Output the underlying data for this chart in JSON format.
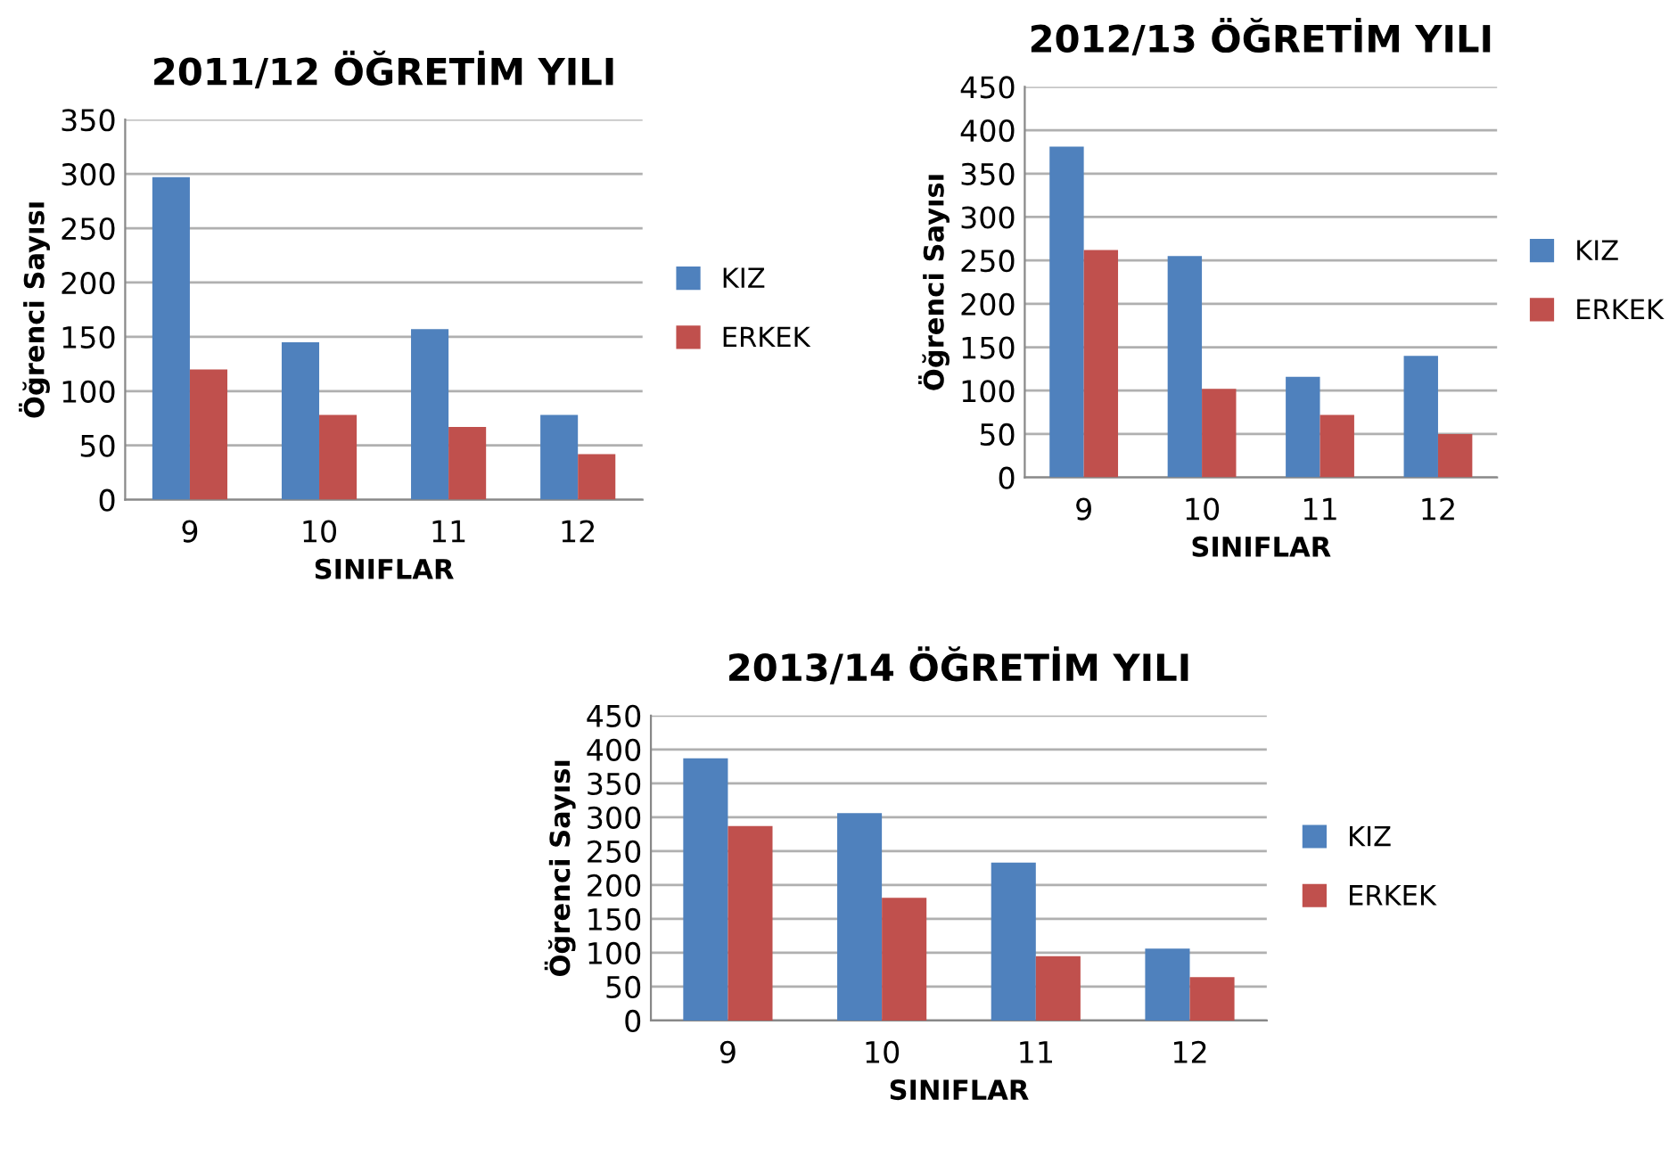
{
  "chart_data": [
    {
      "type": "bar",
      "title": "2011/12 ÖĞRETİM YILI",
      "xlabel": "SINIFLAR",
      "ylabel": "Öğrenci Sayısı",
      "categories": [
        "9",
        "10",
        "11",
        "12"
      ],
      "series": [
        {
          "name": "KIZ",
          "color": "#4f81bd",
          "values": [
            297,
            145,
            157,
            78
          ]
        },
        {
          "name": "ERKEK",
          "color": "#c0504d",
          "values": [
            120,
            78,
            67,
            42
          ]
        }
      ],
      "ylim": [
        0,
        350
      ],
      "yticks": [
        0,
        50,
        100,
        150,
        200,
        250,
        300,
        350
      ],
      "grid": "y",
      "legend": "right"
    },
    {
      "type": "bar",
      "title": "2012/13 ÖĞRETİM YILI",
      "xlabel": "SINIFLAR",
      "ylabel": "Öğrenci Sayısı",
      "categories": [
        "9",
        "10",
        "11",
        "12"
      ],
      "series": [
        {
          "name": "KIZ",
          "color": "#4f81bd",
          "values": [
            381,
            255,
            116,
            140
          ]
        },
        {
          "name": "ERKEK",
          "color": "#c0504d",
          "values": [
            262,
            102,
            72,
            50
          ]
        }
      ],
      "ylim": [
        0,
        450
      ],
      "yticks": [
        0,
        50,
        100,
        150,
        200,
        250,
        300,
        350,
        400,
        450
      ],
      "grid": "y",
      "legend": "right"
    },
    {
      "type": "bar",
      "title": "2013/14 ÖĞRETİM YILI",
      "xlabel": "SINIFLAR",
      "ylabel": "Öğrenci Sayısı",
      "categories": [
        "9",
        "10",
        "11",
        "12"
      ],
      "series": [
        {
          "name": "KIZ",
          "color": "#4f81bd",
          "values": [
            387,
            306,
            233,
            106
          ]
        },
        {
          "name": "ERKEK",
          "color": "#c0504d",
          "values": [
            287,
            181,
            95,
            64
          ]
        }
      ],
      "ylim": [
        0,
        450
      ],
      "yticks": [
        0,
        50,
        100,
        150,
        200,
        250,
        300,
        350,
        400,
        450
      ],
      "grid": "y",
      "legend": "right"
    }
  ]
}
